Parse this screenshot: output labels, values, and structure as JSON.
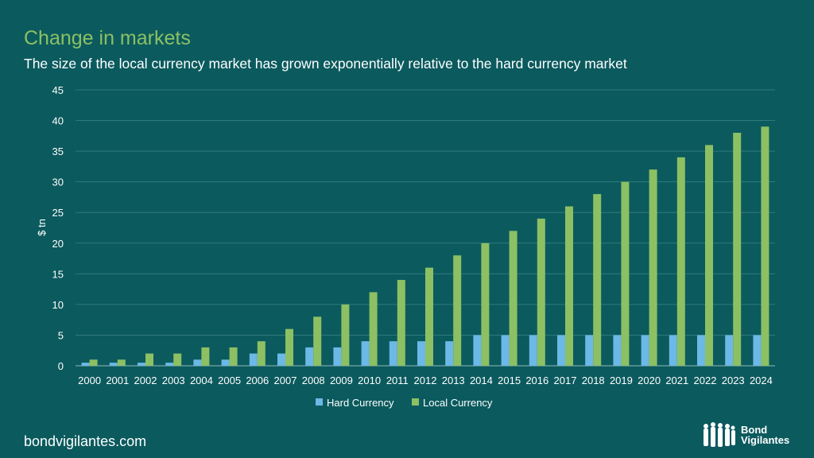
{
  "header": {
    "title": "Change in markets",
    "subtitle": "The size of the local currency market has grown exponentially relative to the hard currency market"
  },
  "footer": {
    "website": "bondvigilantes.com",
    "logo_text_line1": "Bond",
    "logo_text_line2": "Vigilantes"
  },
  "colors": {
    "background": "#0b5a5e",
    "hard": "#6cb8e6",
    "local": "#8dc063",
    "title": "#8cc063"
  },
  "chart_data": {
    "type": "bar",
    "title": "Change in markets",
    "xlabel": "",
    "ylabel": "$ tn",
    "ylim": [
      0,
      45
    ],
    "yticks": [
      0,
      5,
      10,
      15,
      20,
      25,
      30,
      35,
      40,
      45
    ],
    "grid": true,
    "legend_position": "bottom",
    "categories": [
      "2000",
      "2001",
      "2002",
      "2003",
      "2004",
      "2005",
      "2006",
      "2007",
      "2008",
      "2009",
      "2010",
      "2011",
      "2012",
      "2013",
      "2014",
      "2015",
      "2016",
      "2017",
      "2018",
      "2019",
      "2020",
      "2021",
      "2022",
      "2023",
      "2024"
    ],
    "series": [
      {
        "name": "Hard Currency",
        "color": "#6cb8e6",
        "values": [
          0.5,
          0.5,
          0.5,
          0.5,
          1,
          1,
          2,
          2,
          3,
          3,
          4,
          4,
          4,
          4,
          5,
          5,
          5,
          5,
          5,
          5,
          5,
          5,
          5,
          5,
          5
        ]
      },
      {
        "name": "Local Currency",
        "color": "#8dc063",
        "values": [
          1,
          1,
          2,
          2,
          3,
          3,
          4,
          6,
          8,
          10,
          12,
          14,
          16,
          18,
          20,
          22,
          24,
          26,
          28,
          30,
          32,
          34,
          36,
          38,
          39
        ]
      }
    ]
  }
}
